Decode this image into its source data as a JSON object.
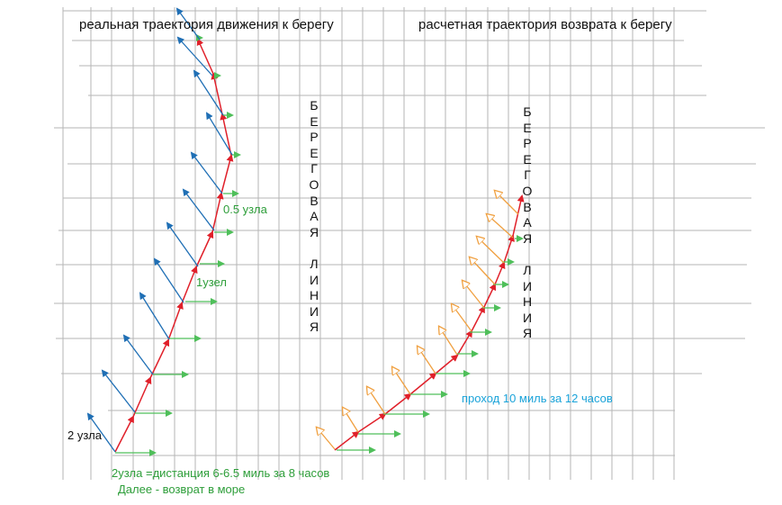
{
  "titles": {
    "left": "реальная траектория движения к берегу",
    "right": "расчетная траектория возврата к берегу"
  },
  "coast_label": {
    "word1": [
      "Б",
      "Е",
      "Р",
      "Е",
      "Г",
      "О",
      "В",
      "А",
      "Я"
    ],
    "word2": [
      "Л",
      "И",
      "Н",
      "И",
      "Я"
    ]
  },
  "annotations": {
    "half_knot": "0.5 узла",
    "one_knot": "1узел",
    "two_knots": "2 узла",
    "distance": "2узла =дистанция 6-6.5 миль за 8 часов",
    "return": "Далее - возврат в море",
    "pass": "проход 10 миль за 12 часов"
  },
  "colors": {
    "grid": "#b5b5b5",
    "track": "#e0202a",
    "current": "#4fbf5a",
    "wind_left": "#1f6fb5",
    "wind_right": "#f0a040",
    "green_text": "#2e9e3a",
    "cyan_text": "#1aa3d9"
  }
}
